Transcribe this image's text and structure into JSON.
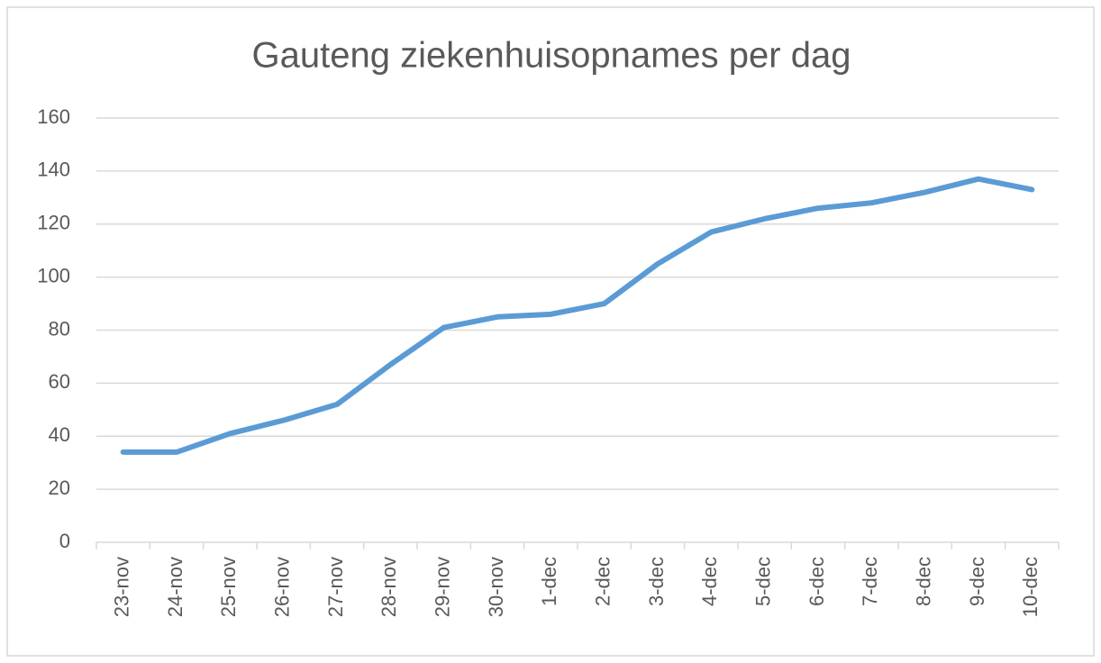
{
  "chart_data": {
    "type": "line",
    "title": "Gauteng ziekenhuisopnames per dag",
    "categories": [
      "23-nov",
      "24-nov",
      "25-nov",
      "26-nov",
      "27-nov",
      "28-nov",
      "29-nov",
      "30-nov",
      "1-dec",
      "2-dec",
      "3-dec",
      "4-dec",
      "5-dec",
      "6-dec",
      "7-dec",
      "8-dec",
      "9-dec",
      "10-dec"
    ],
    "values": [
      34,
      34,
      41,
      46,
      52,
      67,
      81,
      85,
      86,
      90,
      105,
      117,
      122,
      126,
      128,
      132,
      137,
      133
    ],
    "color": "#5b9bd5",
    "ylim": [
      0,
      160
    ],
    "yticks": [
      0,
      20,
      40,
      60,
      80,
      100,
      120,
      140,
      160
    ],
    "grid": true
  }
}
